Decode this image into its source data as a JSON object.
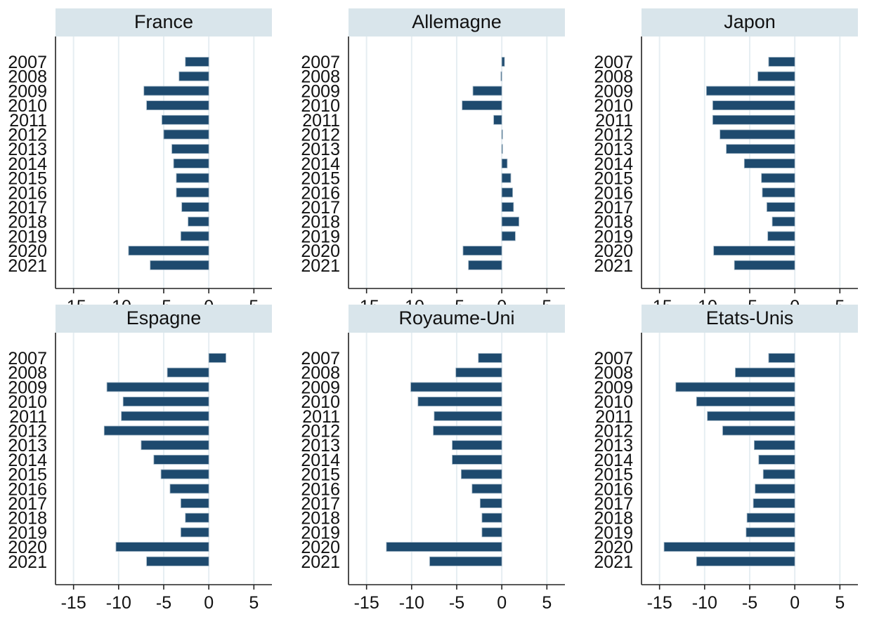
{
  "chart_data": {
    "type": "bar",
    "orientation": "horizontal",
    "layout": "small-multiples 2x3",
    "bar_color": "#1e4a6e",
    "title_bg_color": "#d9e5eb",
    "grid": true,
    "xlim": [
      -17,
      7
    ],
    "xticks": [
      -15,
      -10,
      -5,
      0,
      5
    ],
    "categories": [
      "2007",
      "2008",
      "2009",
      "2010",
      "2011",
      "2012",
      "2013",
      "2014",
      "2015",
      "2016",
      "2017",
      "2018",
      "2019",
      "2020",
      "2021"
    ],
    "panels": [
      {
        "title": "France",
        "values": [
          -2.6,
          -3.3,
          -7.2,
          -6.9,
          -5.2,
          -5.0,
          -4.1,
          -3.9,
          -3.6,
          -3.6,
          -3.0,
          -2.3,
          -3.1,
          -8.9,
          -6.5
        ]
      },
      {
        "title": "Allemagne",
        "values": [
          0.3,
          -0.1,
          -3.2,
          -4.4,
          -0.9,
          0.0,
          0.0,
          0.6,
          1.0,
          1.2,
          1.3,
          1.9,
          1.5,
          -4.3,
          -3.7
        ]
      },
      {
        "title": "Japon",
        "values": [
          -2.9,
          -4.1,
          -9.8,
          -9.1,
          -9.1,
          -8.3,
          -7.6,
          -5.6,
          -3.7,
          -3.6,
          -3.1,
          -2.5,
          -3.0,
          -9.0,
          -6.7
        ]
      },
      {
        "title": "Espagne",
        "values": [
          1.9,
          -4.6,
          -11.3,
          -9.5,
          -9.7,
          -11.6,
          -7.5,
          -6.1,
          -5.3,
          -4.3,
          -3.1,
          -2.6,
          -3.1,
          -10.3,
          -6.9
        ]
      },
      {
        "title": "Royaume-Uni",
        "values": [
          -2.6,
          -5.1,
          -10.1,
          -9.3,
          -7.5,
          -7.6,
          -5.5,
          -5.5,
          -4.5,
          -3.3,
          -2.4,
          -2.2,
          -2.2,
          -12.8,
          -8.0
        ]
      },
      {
        "title": "Etats-Unis",
        "values": [
          -2.9,
          -6.6,
          -13.2,
          -10.9,
          -9.7,
          -8.0,
          -4.5,
          -4.0,
          -3.5,
          -4.4,
          -4.6,
          -5.3,
          -5.4,
          -14.5,
          -10.9
        ]
      }
    ]
  }
}
